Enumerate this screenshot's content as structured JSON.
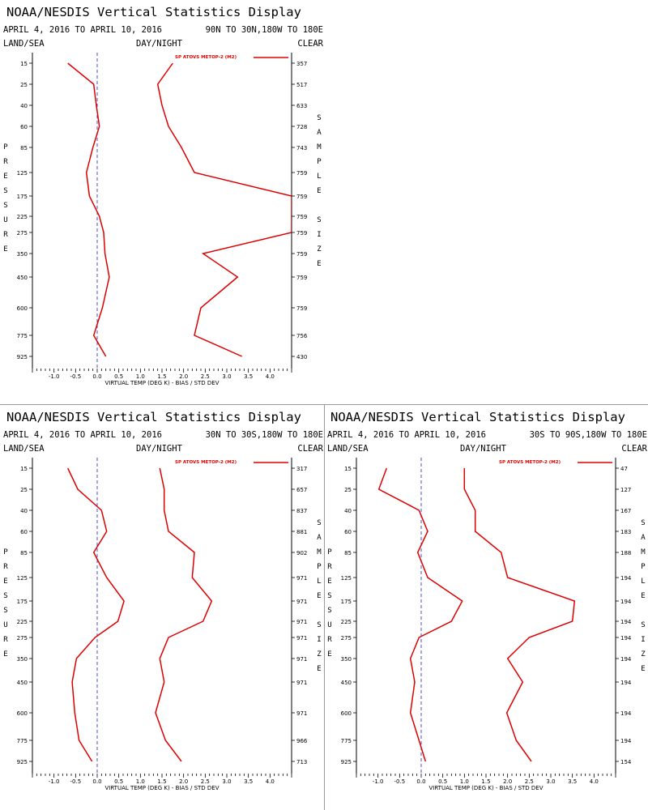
{
  "colors": {
    "series": "#dd0000",
    "text": "#000000",
    "axis": "#000000",
    "zero_line": "#4a4ad0"
  },
  "charts": [
    {
      "title": "NOAA/NESDIS Vertical Statistics Display",
      "date_range": "APRIL 4, 2016 TO APRIL 10, 2016",
      "region": "90N TO 30N,180W TO 180E",
      "left_label": "LAND/SEA",
      "center_label": "DAY/NIGHT",
      "right_label": "CLEAR"
    },
    {
      "title": "NOAA/NESDIS Vertical Statistics Display",
      "date_range": "APRIL 4, 2016 TO APRIL 10, 2016",
      "region": "30N TO 30S,180W TO 180E",
      "left_label": "LAND/SEA",
      "center_label": "DAY/NIGHT",
      "right_label": "CLEAR"
    },
    {
      "title": "NOAA/NESDIS Vertical Statistics Display",
      "date_range": "APRIL 4, 2016 TO APRIL 10, 2016",
      "region": "30S TO 90S,180W TO 180E",
      "left_label": "LAND/SEA",
      "center_label": "DAY/NIGHT",
      "right_label": "CLEAR"
    }
  ],
  "chart_data": [
    {
      "type": "line",
      "xlabel": "VIRTUAL TEMP (DEG K) - BIAS / STD DEV",
      "ylabel": "PRESSURE",
      "y2label": "SAMPLE SIZE",
      "xlim": [
        -1.5,
        4.5
      ],
      "x_ticks": [
        "-1.0",
        "-0.5",
        "0.0",
        "0.5",
        "1.0",
        "1.5",
        "2.0",
        "2.5",
        "3.0",
        "3.5",
        "4.0"
      ],
      "pressure_levels": [
        "15",
        "25",
        "40",
        "60",
        "85",
        "125",
        "175",
        "225",
        "275",
        "350",
        "450",
        "600",
        "775",
        "925"
      ],
      "sample_sizes": [
        "357",
        "517",
        "633",
        "728",
        "743",
        "759",
        "759",
        "759",
        "759",
        "759",
        "759",
        "759",
        "756",
        "430"
      ],
      "legend": "SP ATOVS METOP-2 (M2)",
      "series": [
        {
          "name": "SP ATOVS METOP-2 (M2)",
          "role": "bias",
          "values": [
            -0.68,
            -0.08,
            -0.02,
            0.05,
            -0.1,
            -0.25,
            -0.18,
            0.05,
            0.15,
            0.18,
            0.28,
            0.12,
            -0.08,
            0.2
          ]
        },
        {
          "name": "SP ATOVS METOP-2 (M2)",
          "role": "std_dev",
          "values": [
            1.75,
            1.4,
            1.5,
            1.65,
            1.95,
            2.25,
            4.5,
            4.5,
            4.5,
            2.45,
            3.25,
            2.4,
            2.25,
            3.35
          ]
        }
      ]
    },
    {
      "type": "line",
      "xlabel": "VIRTUAL TEMP (DEG K) - BIAS / STD DEV",
      "ylabel": "PRESSURE",
      "y2label": "SAMPLE SIZE",
      "xlim": [
        -1.5,
        4.5
      ],
      "x_ticks": [
        "-1.0",
        "-0.5",
        "0.0",
        "0.5",
        "1.0",
        "1.5",
        "2.0",
        "2.5",
        "3.0",
        "3.5",
        "4.0"
      ],
      "pressure_levels": [
        "15",
        "25",
        "40",
        "60",
        "85",
        "125",
        "175",
        "225",
        "275",
        "350",
        "450",
        "600",
        "775",
        "925"
      ],
      "sample_sizes": [
        "317",
        "657",
        "837",
        "881",
        "902",
        "971",
        "971",
        "971",
        "971",
        "971",
        "971",
        "971",
        "966",
        "713"
      ],
      "legend": "SP ATOVS METOP-2 (M2)",
      "series": [
        {
          "name": "SP ATOVS METOP-2 (M2)",
          "role": "bias",
          "values": [
            -0.68,
            -0.45,
            0.1,
            0.22,
            -0.08,
            0.22,
            0.62,
            0.48,
            -0.05,
            -0.48,
            -0.58,
            -0.52,
            -0.42,
            -0.12
          ]
        },
        {
          "name": "SP ATOVS METOP-2 (M2)",
          "role": "std_dev",
          "values": [
            1.45,
            1.55,
            1.55,
            1.65,
            2.25,
            2.2,
            2.65,
            2.45,
            1.65,
            1.45,
            1.55,
            1.35,
            1.58,
            1.95
          ]
        }
      ]
    },
    {
      "type": "line",
      "xlabel": "VIRTUAL TEMP (DEG K) - BIAS / STD DEV",
      "ylabel": "PRESSURE",
      "y2label": "SAMPLE SIZE",
      "xlim": [
        -1.5,
        4.5
      ],
      "x_ticks": [
        "-1.0",
        "-0.5",
        "0.0",
        "0.5",
        "1.0",
        "1.5",
        "2.0",
        "2.5",
        "3.0",
        "3.5",
        "4.0"
      ],
      "pressure_levels": [
        "15",
        "25",
        "40",
        "60",
        "85",
        "125",
        "175",
        "225",
        "275",
        "350",
        "450",
        "600",
        "775",
        "925"
      ],
      "sample_sizes": [
        "47",
        "127",
        "167",
        "183",
        "188",
        "194",
        "194",
        "194",
        "194",
        "194",
        "194",
        "194",
        "194",
        "154"
      ],
      "legend": "SP ATOVS METOP-2 (M2)",
      "series": [
        {
          "name": "SP ATOVS METOP-2 (M2)",
          "role": "bias",
          "values": [
            -0.8,
            -0.98,
            -0.05,
            0.15,
            -0.08,
            0.15,
            0.95,
            0.7,
            -0.05,
            -0.25,
            -0.15,
            -0.25,
            -0.05,
            0.1
          ]
        },
        {
          "name": "SP ATOVS METOP-2 (M2)",
          "role": "std_dev",
          "values": [
            1.0,
            1.0,
            1.25,
            1.25,
            1.85,
            2.0,
            3.55,
            3.5,
            2.5,
            2.0,
            2.35,
            1.98,
            2.2,
            2.55
          ]
        }
      ]
    }
  ]
}
